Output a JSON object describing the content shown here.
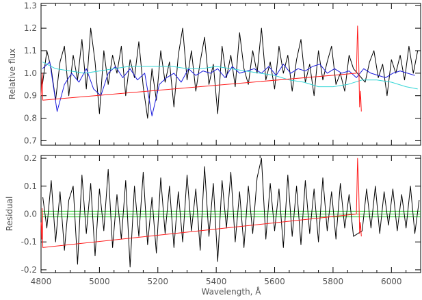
{
  "chart_data": [
    {
      "type": "line",
      "panel": "top",
      "title": "",
      "xlabel": "",
      "ylabel": "Relative flux",
      "xlim": [
        4800,
        6100
      ],
      "ylim": [
        0.68,
        1.31
      ],
      "xticks": [
        4800,
        5000,
        5200,
        5400,
        5600,
        5800,
        6000
      ],
      "yticks": [
        0.7,
        0.8,
        0.9,
        1.0,
        1.1,
        1.2,
        1.3
      ],
      "ytick_labels": [
        "0.7",
        "0.8",
        "0.9",
        "1.0",
        "1.1",
        "1.2",
        "1.3"
      ],
      "legend": "none",
      "grid": false,
      "colors": {
        "observed": "#000000",
        "model": "#1a1adc",
        "continuum": "#33d6d6",
        "masked": "#ff1a1a"
      },
      "mask_regions": [
        [
          4800,
          4806
        ],
        [
          5880,
          5898
        ]
      ],
      "series": [
        {
          "color": "#000000",
          "x": [
            4805,
            4820,
            4835,
            4850,
            4865,
            4880,
            4895,
            4910,
            4925,
            4940,
            4955,
            4970,
            4985,
            5000,
            5015,
            5030,
            5045,
            5060,
            5075,
            5090,
            5105,
            5120,
            5135,
            5150,
            5165,
            5180,
            5195,
            5210,
            5225,
            5240,
            5255,
            5270,
            5285,
            5300,
            5315,
            5330,
            5345,
            5360,
            5375,
            5390,
            5405,
            5420,
            5435,
            5450,
            5465,
            5480,
            5495,
            5510,
            5525,
            5540,
            5555,
            5570,
            5585,
            5600,
            5615,
            5630,
            5645,
            5660,
            5675,
            5690,
            5705,
            5720,
            5735,
            5750,
            5765,
            5780,
            5795,
            5810,
            5825,
            5840,
            5855,
            5870,
            5910,
            5925,
            5940,
            5955,
            5970,
            5985,
            6000,
            6015,
            6030,
            6045,
            6060,
            6075,
            6090
          ],
          "y": [
            0.95,
            1.1,
            1.02,
            0.88,
            1.05,
            1.12,
            0.9,
            1.08,
            0.97,
            1.15,
            0.93,
            1.2,
            1.05,
            0.82,
            1.1,
            0.95,
            1.08,
            1.0,
            1.12,
            0.9,
            1.06,
            0.98,
            1.14,
            0.94,
            0.8,
            1.02,
            0.88,
            1.1,
            0.96,
            1.05,
            0.85,
            1.08,
            1.2,
            0.97,
            1.1,
            0.92,
            1.05,
            1.16,
            0.95,
            1.04,
            0.82,
            1.12,
            0.98,
            1.08,
            0.94,
            1.18,
            1.02,
            0.95,
            1.1,
            1.0,
            1.2,
            0.97,
            1.05,
            0.93,
            1.12,
            1.0,
            1.08,
            0.92,
            1.06,
            1.15,
            0.96,
            1.04,
            0.9,
            1.1,
            0.97,
            1.05,
            1.12,
            0.95,
            1.0,
            0.92,
            1.08,
            1.02,
            0.96,
            1.05,
            1.1,
            0.98,
            1.04,
            0.9,
            1.06,
            1.0,
            1.08,
            0.97,
            1.12,
            1.0,
            1.1
          ]
        },
        {
          "color": "#1a1adc",
          "x": [
            4805,
            4830,
            4855,
            4880,
            4905,
            4930,
            4955,
            4980,
            5005,
            5030,
            5055,
            5080,
            5105,
            5130,
            5155,
            5180,
            5205,
            5230,
            5255,
            5280,
            5305,
            5330,
            5355,
            5380,
            5405,
            5430,
            5455,
            5480,
            5505,
            5530,
            5555,
            5580,
            5605,
            5630,
            5655,
            5680,
            5705,
            5730,
            5755,
            5780,
            5805,
            5830,
            5855,
            5880,
            5905,
            5930,
            5955,
            5980,
            6005,
            6030,
            6055,
            6080
          ],
          "y": [
            1.02,
            1.05,
            0.83,
            0.95,
            1.0,
            0.96,
            1.02,
            0.93,
            0.9,
            1.0,
            1.03,
            0.98,
            1.02,
            0.97,
            1.0,
            0.81,
            0.95,
            0.98,
            1.0,
            0.96,
            1.02,
            0.99,
            1.01,
            1.0,
            1.02,
            0.98,
            1.03,
            1.0,
            1.01,
            1.02,
            1.0,
            1.03,
            0.99,
            1.04,
            1.0,
            1.02,
            1.01,
            1.03,
            1.04,
            1.0,
            1.02,
            1.0,
            1.01,
            0.98,
            1.02,
            1.0,
            0.99,
            0.98,
            1.0,
            1.01,
            1.0,
            0.99
          ]
        },
        {
          "color": "#33d6d6",
          "x": [
            4805,
            4850,
            4900,
            4950,
            5000,
            5050,
            5100,
            5150,
            5200,
            5250,
            5300,
            5350,
            5400,
            5450,
            5500,
            5550,
            5600,
            5650,
            5700,
            5750,
            5800,
            5850,
            5900,
            5950,
            6000,
            6050,
            6090
          ],
          "y": [
            1.05,
            1.02,
            1.01,
            1.0,
            1.01,
            1.02,
            1.03,
            1.03,
            1.03,
            1.03,
            1.02,
            1.02,
            1.03,
            1.02,
            1.01,
            1.0,
            0.99,
            0.97,
            0.96,
            0.94,
            0.94,
            0.95,
            0.97,
            0.97,
            0.96,
            0.94,
            0.93
          ]
        },
        {
          "color": "#ff1a1a",
          "x": [
            4800,
            4802,
            4804,
            4806,
            5880,
            5884,
            5888,
            5891,
            5894,
            5897
          ],
          "y": [
            0.9,
            0.95,
            1.0,
            0.88,
            1.0,
            1.21,
            1.05,
            0.85,
            0.92,
            0.83
          ]
        }
      ]
    },
    {
      "type": "line",
      "panel": "bottom",
      "title": "",
      "xlabel": "Wavelength, Å",
      "ylabel": "Residual",
      "xlim": [
        4800,
        6100
      ],
      "ylim": [
        -0.21,
        0.21
      ],
      "xticks": [
        4800,
        5000,
        5200,
        5400,
        5600,
        5800,
        6000
      ],
      "xtick_labels": [
        "4800",
        "5000",
        "5200",
        "5400",
        "5600",
        "5800",
        "6000"
      ],
      "yticks": [
        -0.2,
        -0.1,
        0.0,
        0.1,
        0.2
      ],
      "ytick_labels": [
        "-0.2",
        "-0.1",
        "0.0",
        "0.1",
        "0.2"
      ],
      "legend": "none",
      "grid": false,
      "colors": {
        "residual": "#000000",
        "zero_band": "#22cc22",
        "masked": "#ff1a1a"
      },
      "zero_band": [
        -0.01,
        0.0,
        0.01
      ],
      "mask_regions": [
        [
          4800,
          4806
        ],
        [
          5880,
          5898
        ]
      ],
      "series": [
        {
          "color": "#000000",
          "x": [
            4806,
            4820,
            4835,
            4850,
            4865,
            4880,
            4895,
            4910,
            4925,
            4940,
            4955,
            4970,
            4985,
            5000,
            5015,
            5030,
            5045,
            5060,
            5075,
            5090,
            5105,
            5120,
            5135,
            5150,
            5165,
            5180,
            5195,
            5210,
            5225,
            5240,
            5255,
            5270,
            5285,
            5300,
            5315,
            5330,
            5345,
            5360,
            5375,
            5390,
            5405,
            5420,
            5435,
            5450,
            5465,
            5480,
            5495,
            5510,
            5525,
            5540,
            5555,
            5570,
            5585,
            5600,
            5615,
            5630,
            5645,
            5660,
            5675,
            5690,
            5705,
            5720,
            5735,
            5750,
            5765,
            5780,
            5795,
            5810,
            5825,
            5840,
            5855,
            5870,
            5900,
            5915,
            5930,
            5945,
            5960,
            5975,
            5990,
            6005,
            6020,
            6035,
            6050,
            6065,
            6080,
            6095
          ],
          "y": [
            0.06,
            -0.05,
            0.12,
            -0.1,
            0.08,
            -0.13,
            0.05,
            0.1,
            -0.18,
            0.14,
            -0.07,
            0.11,
            -0.15,
            0.09,
            -0.06,
            0.16,
            -0.12,
            0.07,
            -0.09,
            0.12,
            -0.19,
            0.1,
            -0.08,
            0.15,
            -0.11,
            0.06,
            -0.14,
            0.13,
            -0.07,
            0.1,
            -0.12,
            0.08,
            -0.1,
            0.14,
            -0.06,
            0.09,
            -0.13,
            0.17,
            -0.08,
            0.11,
            -0.17,
            0.12,
            -0.05,
            0.15,
            -0.1,
            0.08,
            -0.12,
            0.1,
            -0.07,
            0.13,
            0.2,
            -0.09,
            0.11,
            -0.06,
            0.09,
            -0.12,
            0.14,
            -0.08,
            0.1,
            -0.11,
            0.12,
            -0.07,
            0.09,
            -0.1,
            0.13,
            -0.06,
            0.08,
            -0.09,
            0.11,
            -0.05,
            0.07,
            -0.08,
            -0.06,
            0.09,
            -0.05,
            0.1,
            -0.07,
            0.08,
            -0.04,
            0.09,
            -0.06,
            0.07,
            -0.05,
            0.1,
            -0.07,
            0.05
          ]
        },
        {
          "color": "#ff1a1a",
          "x": [
            4800,
            4802,
            4804,
            4806,
            5880,
            5884,
            5888,
            5891,
            5894,
            5897
          ],
          "y": [
            -0.03,
            -0.09,
            0.02,
            -0.12,
            0.0,
            0.2,
            0.09,
            -0.07,
            -0.03,
            -0.08
          ]
        }
      ]
    }
  ]
}
